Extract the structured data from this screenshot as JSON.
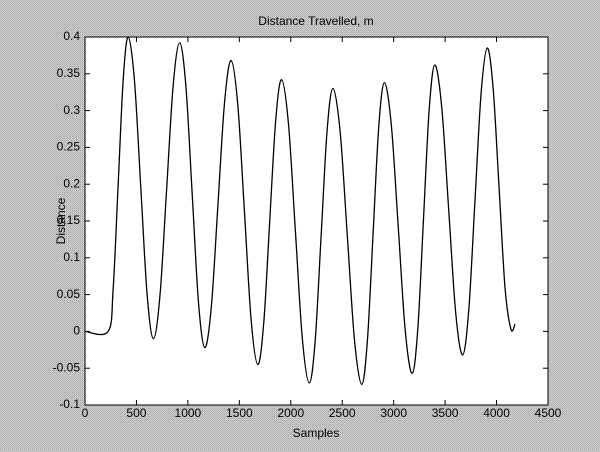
{
  "chart_data": {
    "type": "line",
    "title": "Distance Travelled, m",
    "xlabel": "Samples",
    "ylabel": "Distance",
    "xlim": [
      0,
      4500
    ],
    "ylim": [
      -0.1,
      0.4
    ],
    "xticks": [
      0,
      500,
      1000,
      1500,
      2000,
      2500,
      3000,
      3500,
      4000,
      4500
    ],
    "yticks": [
      -0.1,
      -0.05,
      0,
      0.05,
      0.1,
      0.15,
      0.2,
      0.25,
      0.3,
      0.35,
      0.4
    ],
    "grid": false,
    "series": [
      {
        "color": "#000000",
        "x": [
          0,
          225,
          273.75,
          322.5,
          371.25,
          420,
          481.25,
          542.5,
          603.75,
          665,
          728.75,
          792.5,
          856.25,
          920,
          981.25,
          1042.5,
          1103.75,
          1165,
          1228.75,
          1292.5,
          1356.25,
          1420,
          1485,
          1550,
          1615,
          1680,
          1737.5,
          1795,
          1852.5,
          1910,
          1977.5,
          2045,
          2112.5,
          2180,
          2237.5,
          2295,
          2352.5,
          2410,
          2480,
          2550,
          2620,
          2690,
          2745,
          2800,
          2855,
          2910,
          2977.5,
          3045,
          3112.5,
          3180,
          3235,
          3290,
          3345,
          3400,
          3467.5,
          3535,
          3602.5,
          3670,
          3730,
          3790,
          3850,
          3910,
          3967.5,
          4025,
          4082.5,
          4140,
          4180
        ],
        "values": [
          0,
          0,
          0.058,
          0.2,
          0.342,
          0.4,
          0.34,
          0.195,
          0.05,
          -0.01,
          0.049,
          0.191,
          0.333,
          0.392,
          0.332,
          0.185,
          0.038,
          -0.022,
          0.035,
          0.173,
          0.311,
          0.368,
          0.308,
          0.162,
          0.015,
          -0.045,
          0.012,
          0.149,
          0.285,
          0.342,
          0.282,
          0.136,
          -0.01,
          -0.07,
          -0.012,
          0.13,
          0.272,
          0.33,
          0.271,
          0.129,
          -0.013,
          -0.072,
          -0.012,
          0.133,
          0.278,
          0.338,
          0.28,
          0.141,
          0.001,
          -0.057,
          0.004,
          0.153,
          0.301,
          0.362,
          0.304,
          0.165,
          0.026,
          -0.032,
          0.029,
          0.177,
          0.324,
          0.385,
          0.329,
          0.194,
          0.059,
          0.003,
          0.01
        ]
      }
    ]
  }
}
